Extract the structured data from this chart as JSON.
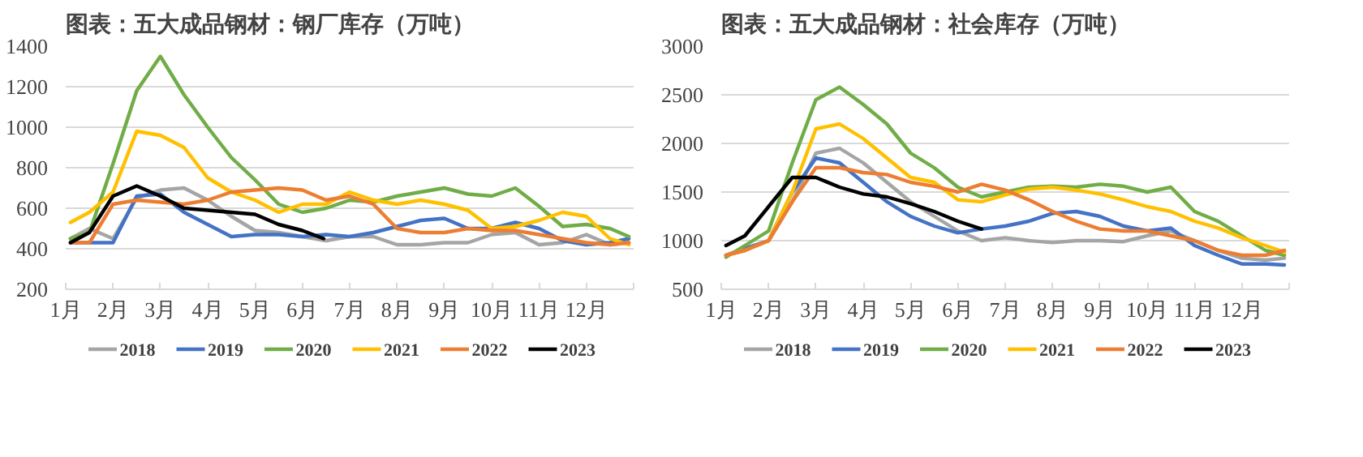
{
  "chart_data": [
    {
      "type": "line",
      "title": "图表：五大成品钢材：钢厂库存（万吨）",
      "x": [
        1.1,
        1.5,
        2,
        2.5,
        3,
        3.5,
        4,
        4.5,
        5,
        5.5,
        6,
        6.5,
        7,
        7.5,
        8,
        8.5,
        9,
        9.5,
        10,
        10.5,
        11,
        11.5,
        12,
        12.5,
        12.9
      ],
      "xlim": [
        1,
        13
      ],
      "xticks": [
        {
          "value": 1,
          "label": "1月"
        },
        {
          "value": 2,
          "label": "2月"
        },
        {
          "value": 3,
          "label": "3月"
        },
        {
          "value": 4,
          "label": "4月"
        },
        {
          "value": 5,
          "label": "5月"
        },
        {
          "value": 6,
          "label": "6月"
        },
        {
          "value": 7,
          "label": "7月"
        },
        {
          "value": 8,
          "label": "8月"
        },
        {
          "value": 9,
          "label": "9月"
        },
        {
          "value": 10,
          "label": "10月"
        },
        {
          "value": 11,
          "label": "11月"
        },
        {
          "value": 12,
          "label": "12月"
        },
        {
          "value": 13,
          "label": null
        }
      ],
      "ylim": [
        200,
        1400
      ],
      "yticks": [
        200,
        400,
        600,
        800,
        1000,
        1200,
        1400
      ],
      "grid": "y",
      "legend": "bottom",
      "series": [
        {
          "name": "2018",
          "color": "#a5a5a5",
          "values": [
            450,
            500,
            450,
            650,
            690,
            700,
            640,
            560,
            490,
            480,
            460,
            440,
            460,
            460,
            420,
            420,
            430,
            430,
            470,
            480,
            420,
            430,
            470,
            420,
            430
          ]
        },
        {
          "name": "2019",
          "color": "#4472c4",
          "values": [
            430,
            430,
            430,
            660,
            670,
            580,
            520,
            460,
            470,
            470,
            460,
            470,
            460,
            480,
            510,
            540,
            550,
            500,
            500,
            530,
            500,
            440,
            420,
            430,
            450
          ]
        },
        {
          "name": "2020",
          "color": "#70ad47",
          "values": [
            450,
            480,
            820,
            1180,
            1350,
            1160,
            1000,
            850,
            740,
            620,
            580,
            600,
            640,
            630,
            660,
            680,
            700,
            670,
            660,
            700,
            610,
            510,
            520,
            500,
            460
          ]
        },
        {
          "name": "2021",
          "color": "#ffc000",
          "values": [
            530,
            580,
            680,
            980,
            960,
            900,
            750,
            680,
            640,
            580,
            620,
            620,
            680,
            640,
            620,
            640,
            620,
            590,
            500,
            510,
            540,
            580,
            560,
            450,
            420
          ]
        },
        {
          "name": "2022",
          "color": "#ed7d31",
          "values": [
            430,
            430,
            620,
            640,
            630,
            620,
            640,
            680,
            690,
            700,
            690,
            640,
            660,
            620,
            500,
            480,
            480,
            500,
            490,
            490,
            470,
            450,
            430,
            420,
            430
          ]
        },
        {
          "name": "2023",
          "color": "#000000",
          "x": [
            1.1,
            1.5,
            2,
            2.5,
            3,
            3.5,
            4,
            4.5,
            5,
            5.5,
            6,
            6.45
          ],
          "values": [
            430,
            480,
            660,
            710,
            660,
            600,
            590,
            580,
            570,
            520,
            490,
            450
          ]
        }
      ]
    },
    {
      "type": "line",
      "title": "图表：五大成品钢材：社会库存（万吨）",
      "x": [
        1.1,
        1.5,
        2,
        2.5,
        3,
        3.5,
        4,
        4.5,
        5,
        5.5,
        6,
        6.5,
        7,
        7.5,
        8,
        8.5,
        9,
        9.5,
        10,
        10.5,
        11,
        11.5,
        12,
        12.5,
        12.9
      ],
      "xlim": [
        1,
        13
      ],
      "xticks": [
        {
          "value": 1,
          "label": "1月"
        },
        {
          "value": 2,
          "label": "2月"
        },
        {
          "value": 3,
          "label": "3月"
        },
        {
          "value": 4,
          "label": "4月"
        },
        {
          "value": 5,
          "label": "5月"
        },
        {
          "value": 6,
          "label": "6月"
        },
        {
          "value": 7,
          "label": "7月"
        },
        {
          "value": 8,
          "label": "8月"
        },
        {
          "value": 9,
          "label": "9月"
        },
        {
          "value": 10,
          "label": "10月"
        },
        {
          "value": 11,
          "label": "11月"
        },
        {
          "value": 12,
          "label": "12月"
        },
        {
          "value": 13,
          "label": null
        }
      ],
      "ylim": [
        500,
        3000
      ],
      "yticks": [
        500,
        1000,
        1500,
        2000,
        2500,
        3000
      ],
      "grid": "y",
      "legend": "bottom",
      "series": [
        {
          "name": "2018",
          "color": "#a5a5a5",
          "values": [
            850,
            900,
            1000,
            1400,
            1900,
            1950,
            1800,
            1600,
            1400,
            1250,
            1100,
            1000,
            1030,
            1000,
            980,
            1000,
            1000,
            990,
            1050,
            1100,
            1000,
            900,
            820,
            800,
            820
          ]
        },
        {
          "name": "2019",
          "color": "#4472c4",
          "values": [
            850,
            920,
            1000,
            1500,
            1850,
            1800,
            1600,
            1400,
            1250,
            1150,
            1080,
            1120,
            1150,
            1200,
            1280,
            1300,
            1250,
            1150,
            1100,
            1130,
            950,
            850,
            760,
            760,
            750
          ]
        },
        {
          "name": "2020",
          "color": "#70ad47",
          "values": [
            830,
            950,
            1100,
            1800,
            2450,
            2580,
            2400,
            2200,
            1900,
            1750,
            1550,
            1450,
            1500,
            1550,
            1560,
            1550,
            1580,
            1560,
            1500,
            1550,
            1300,
            1200,
            1050,
            900,
            850
          ]
        },
        {
          "name": "2021",
          "color": "#ffc000",
          "values": [
            850,
            900,
            1000,
            1500,
            2150,
            2200,
            2050,
            1850,
            1650,
            1600,
            1420,
            1400,
            1470,
            1530,
            1550,
            1520,
            1480,
            1420,
            1350,
            1300,
            1200,
            1130,
            1030,
            950,
            880
          ]
        },
        {
          "name": "2022",
          "color": "#ed7d31",
          "values": [
            850,
            900,
            1000,
            1400,
            1750,
            1750,
            1700,
            1680,
            1600,
            1560,
            1500,
            1580,
            1520,
            1420,
            1300,
            1200,
            1120,
            1100,
            1100,
            1050,
            1000,
            900,
            850,
            850,
            900
          ]
        },
        {
          "name": "2023",
          "color": "#000000",
          "x": [
            1.1,
            1.5,
            2,
            2.5,
            3,
            3.5,
            4,
            4.5,
            5,
            5.5,
            6,
            6.5
          ],
          "values": [
            950,
            1050,
            1350,
            1650,
            1650,
            1550,
            1480,
            1450,
            1380,
            1300,
            1200,
            1120
          ]
        }
      ]
    }
  ]
}
